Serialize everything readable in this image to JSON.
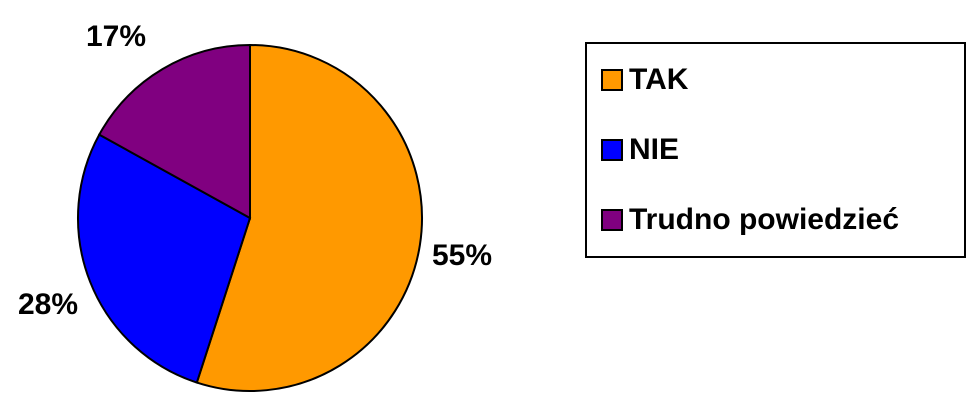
{
  "chart_data": {
    "type": "pie",
    "slices": [
      {
        "name": "TAK",
        "value": 55,
        "label": "55%",
        "color": "#FF9900"
      },
      {
        "name": "NIE",
        "value": 28,
        "label": "28%",
        "color": "#0000FF"
      },
      {
        "name": "Trudno powiedzieć",
        "value": 17,
        "label": "17%",
        "color": "#800080"
      }
    ],
    "legend_position": "right"
  }
}
